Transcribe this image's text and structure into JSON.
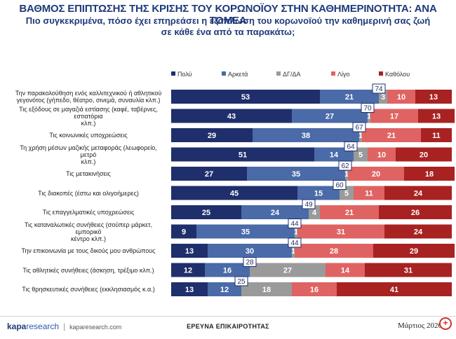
{
  "title": "ΒΑΘΜΟΣ ΕΠΙΠΤΩΣΗΣ ΤΗΣ ΚΡΙΣΗΣ ΤΟΥ ΚΟΡΩΝΟΪΟΥ ΣΤΗΝ ΚΑΘΗΜΕΡΙΝΟΤΗΤΑ: ΑΝΑ ΤΟΜΕΑ",
  "subtitle_line1": "Πιο συγκεκριμένα, πόσο έχει επηρεάσει η εξάπλωση του κορωνοϊού την καθημερινή σας ζωή",
  "subtitle_line2": "σε κάθε ένα από τα παρακάτω;",
  "footer": {
    "logo_brand": "kapa",
    "logo_suffix": "research",
    "separator": "|",
    "url": "kaparesearch.com",
    "center_text": "ΕΡΕΥΝΑ ΕΠΙΚΑΙΡΟΤΗΤΑΣ",
    "date_text": "Μάρτιος 2020"
  },
  "colors": {
    "poly": "#1f2f6b",
    "arketa": "#4a6aa8",
    "dgda": "#9a9a9a",
    "ligo": "#e06363",
    "katholou": "#a82222",
    "title": "#1f3a7a"
  },
  "chart_data": {
    "type": "bar",
    "orientation": "horizontal",
    "stacked": true,
    "title": "ΒΑΘΜΟΣ ΕΠΙΠΤΩΣΗΣ ΤΗΣ ΚΡΙΣΗΣ ΤΟΥ ΚΟΡΩΝΟΪΟΥ ΣΤΗΝ ΚΑΘΗΜΕΡΙΝΟΤΗΤΑ: ΑΝΑ ΤΟΜΕΑ",
    "unit": "%",
    "legend_position": "top",
    "categories": [
      [
        "Την παρακολούθηση ενός καλλιτεχνικού ή αθλητικού",
        "γεγονότος (γήπεδο, θέατρο, σινεμά, συναυλία κλπ.)"
      ],
      [
        "Τις εξόδους σε μαγαζιά εστίασης (καφέ, ταβέρνες, εστιατόρια",
        "κλπ.)"
      ],
      [
        "Τις κοινωνικές υποχρεώσεις"
      ],
      [
        "Τη χρήση μέσων μαζικής μεταφοράς (λεωφορείο, μετρό",
        "κλπ.)"
      ],
      [
        "Τις μετακινήσεις"
      ],
      [
        "Τις διακοπές (έστω και ολιγοήμερες)"
      ],
      [
        "Τις επαγγελματικές υποχρεώσεις"
      ],
      [
        "Τις καταναλωτικές συνήθειες (σούπερ μάρκετ, εμπορικό",
        "κέντρο κλπ.)"
      ],
      [
        "Την επικοινωνία με τους δικούς μου ανθρώπους"
      ],
      [
        "Τις αθλητικές συνήθειες (άσκηση, τρέξιμο κλπ.)"
      ],
      [
        "Τις θρησκευτικές συνήθειες (εκκλησιασμός κ.α.)"
      ]
    ],
    "series": [
      {
        "name": "Πολύ",
        "values": [
          53,
          43,
          29,
          51,
          27,
          45,
          25,
          9,
          13,
          12,
          13
        ]
      },
      {
        "name": "Αρκετά",
        "values": [
          21,
          27,
          38,
          14,
          35,
          15,
          24,
          35,
          30,
          16,
          12
        ]
      },
      {
        "name": "ΔΓ/ΔΑ",
        "values": [
          3,
          1,
          1,
          5,
          1,
          5,
          4,
          1,
          1,
          27,
          18
        ]
      },
      {
        "name": "Λίγο",
        "values": [
          10,
          17,
          21,
          10,
          20,
          11,
          21,
          31,
          28,
          14,
          16
        ]
      },
      {
        "name": "Καθόλου",
        "values": [
          13,
          13,
          11,
          20,
          18,
          24,
          26,
          24,
          29,
          31,
          41
        ]
      }
    ],
    "combined_totals": [
      74,
      70,
      67,
      64,
      62,
      60,
      49,
      44,
      44,
      28,
      25
    ],
    "xlim": [
      0,
      100
    ]
  }
}
